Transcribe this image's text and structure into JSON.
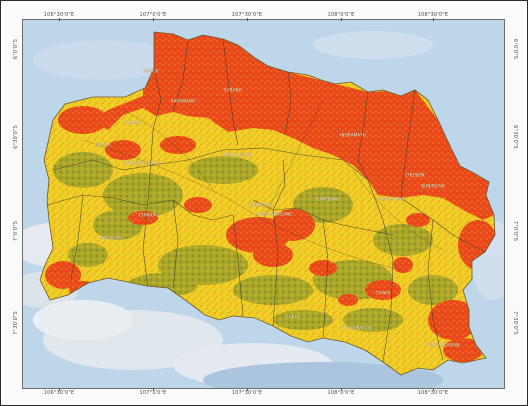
{
  "map": {
    "graticule": {
      "top": [
        "106°30'0\"E",
        "107°0'0\"E",
        "107°30'0\"E",
        "108°0'0\"E",
        "108°30'0\"E"
      ],
      "bottom": [
        "106°30'0\"E",
        "107°0'0\"E",
        "107°30'0\"E",
        "108°0'0\"E",
        "108°30'0\"E"
      ],
      "left": [
        "6°0'0\"S",
        "6°30'0\"S",
        "7°0'0\"S",
        "7°30'0\"S"
      ],
      "right": [
        "6°0'0\"S",
        "6°30'0\"S",
        "7°0'0\"S",
        "7°30'0\"S"
      ]
    },
    "region_labels": [
      "BEKASI",
      "KARAWANG",
      "SUBANG",
      "INDRAMAYU",
      "BOGOR",
      "PURWAKARTA",
      "CIANJUR",
      "SUKABUMI",
      "BANDUNG",
      "KOTA BANDUNG",
      "SUMEDANG",
      "MAJALENGKA",
      "CIREBON",
      "KUNINGAN",
      "GARUT",
      "TASIKMALAYA",
      "CIAMIS",
      "PANGANDARAN",
      "BANDUNG BARAT",
      "DEPOK"
    ],
    "colors": {
      "sea": "#bdd6ea",
      "cloud": "#e9edf1",
      "high_class": "#e8481c",
      "medium_class": "#f2d52a",
      "low_class": "#8e9a2a",
      "boundaries": "#3c3c2a"
    }
  }
}
